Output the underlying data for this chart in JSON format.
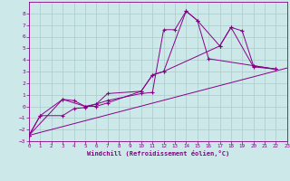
{
  "xlabel": "Windchill (Refroidissement éolien,°C)",
  "bg_color": "#cce8e8",
  "grid_color": "#aacccc",
  "line_color": "#880088",
  "xlim": [
    0,
    23
  ],
  "ylim": [
    -3,
    9
  ],
  "xticks": [
    0,
    1,
    2,
    3,
    4,
    5,
    6,
    7,
    8,
    9,
    10,
    11,
    12,
    13,
    14,
    15,
    16,
    17,
    18,
    19,
    20,
    21,
    22,
    23
  ],
  "yticks": [
    -3,
    -2,
    -1,
    0,
    1,
    2,
    3,
    4,
    5,
    6,
    7,
    8
  ],
  "s1x": [
    0,
    1,
    3,
    4,
    5,
    6,
    7,
    10,
    11,
    12,
    13,
    14,
    15,
    16,
    20,
    22
  ],
  "s1y": [
    -2.5,
    -0.8,
    -0.8,
    -0.2,
    -0.1,
    0.2,
    0.5,
    1.1,
    1.2,
    6.6,
    6.6,
    8.2,
    7.4,
    4.1,
    3.5,
    3.2
  ],
  "s2x": [
    0,
    1,
    3,
    4,
    5,
    6,
    7,
    10,
    11,
    12,
    17,
    18,
    20,
    22
  ],
  "s2y": [
    -2.5,
    -0.8,
    0.6,
    0.5,
    0.0,
    0.0,
    0.3,
    1.3,
    2.7,
    3.0,
    5.2,
    6.8,
    3.4,
    3.2
  ],
  "s3x": [
    0,
    3,
    5,
    6,
    7,
    10,
    11,
    12,
    14,
    15,
    17,
    18,
    19,
    20,
    22
  ],
  "s3y": [
    -2.5,
    0.6,
    0.0,
    0.2,
    1.1,
    1.3,
    2.7,
    3.0,
    8.2,
    7.4,
    5.2,
    6.8,
    6.5,
    3.5,
    3.2
  ],
  "s4x": [
    0,
    23
  ],
  "s4y": [
    -2.5,
    3.3
  ]
}
